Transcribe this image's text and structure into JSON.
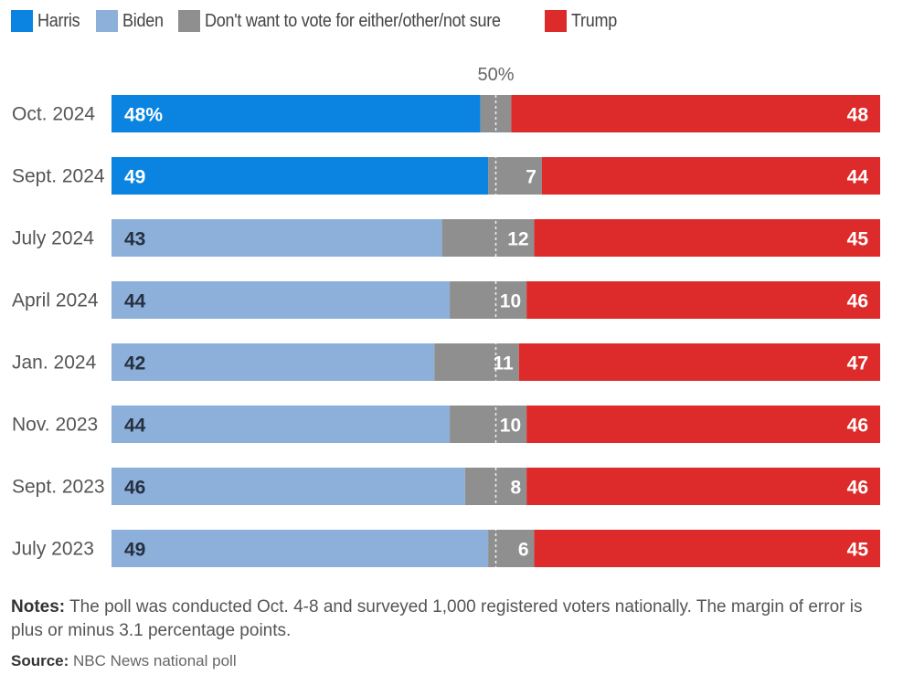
{
  "chart_data": {
    "type": "stacked-bar-horizontal",
    "legend": [
      {
        "name": "Harris",
        "color": "#0a84e0"
      },
      {
        "name": "Biden",
        "color": "#8cb0da"
      },
      {
        "name": "Don't want to vote for either/other/not sure",
        "color": "#8f8f8f"
      },
      {
        "name": "Trump",
        "color": "#dd2a2a"
      }
    ],
    "midline_label": "50%",
    "xlim": [
      0,
      100
    ],
    "rows": [
      {
        "label": "Oct. 2024",
        "dem": "Harris",
        "dem_value": 48,
        "other": 4,
        "trump": 48,
        "dem_label": "48%",
        "other_label": "",
        "trump_label": "48"
      },
      {
        "label": "Sept. 2024",
        "dem": "Harris",
        "dem_value": 49,
        "other": 7,
        "trump": 44,
        "dem_label": "49",
        "other_label": "7",
        "trump_label": "44"
      },
      {
        "label": "July 2024",
        "dem": "Biden",
        "dem_value": 43,
        "other": 12,
        "trump": 45,
        "dem_label": "43",
        "other_label": "12",
        "trump_label": "45"
      },
      {
        "label": "April 2024",
        "dem": "Biden",
        "dem_value": 44,
        "other": 10,
        "trump": 46,
        "dem_label": "44",
        "other_label": "10",
        "trump_label": "46"
      },
      {
        "label": "Jan. 2024",
        "dem": "Biden",
        "dem_value": 42,
        "other": 11,
        "trump": 47,
        "dem_label": "42",
        "other_label": "11",
        "trump_label": "47"
      },
      {
        "label": "Nov. 2023",
        "dem": "Biden",
        "dem_value": 44,
        "other": 10,
        "trump": 46,
        "dem_label": "44",
        "other_label": "10",
        "trump_label": "46"
      },
      {
        "label": "Sept. 2023",
        "dem": "Biden",
        "dem_value": 46,
        "other": 8,
        "trump": 46,
        "dem_label": "46",
        "other_label": "8",
        "trump_label": "46"
      },
      {
        "label": "July 2023",
        "dem": "Biden",
        "dem_value": 49,
        "other": 6,
        "trump": 45,
        "dem_label": "49",
        "other_label": "6",
        "trump_label": "45"
      }
    ]
  },
  "colors": {
    "Harris": "#0a84e0",
    "Biden": "#8cb0da",
    "other": "#8f8f8f",
    "Trump": "#dd2a2a",
    "dark_text": "#263040",
    "light_text": "#ffffff"
  },
  "notes": {
    "label": "Notes:",
    "text": " The poll was conducted Oct. 4-8 and surveyed 1,000 registered voters nationally. The margin of error is plus or minus 3.1 percentage points."
  },
  "source": {
    "label": "Source:",
    "text": " NBC News national poll"
  }
}
